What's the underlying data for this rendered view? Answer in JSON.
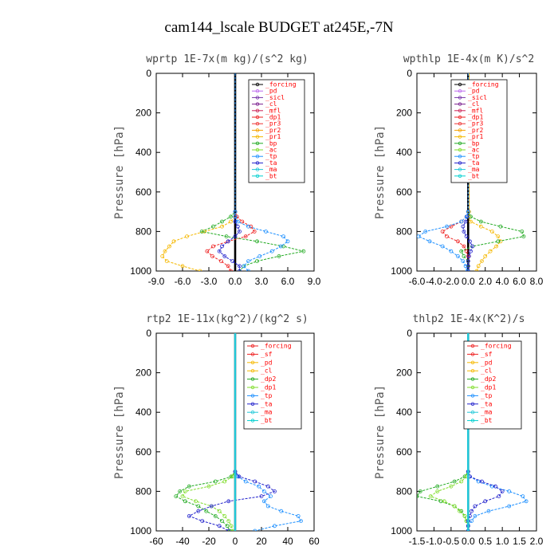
{
  "figure_title": "cam144_lscale  BUDGET at245E,-7N",
  "chart_data": [
    {
      "type": "line",
      "title": "wprtp  1E-7x(m kg)/(s^2 kg)",
      "ylabel": "Pressure [hPa]",
      "xlim": [
        -9,
        9
      ],
      "ylim": [
        1000,
        0
      ],
      "xticks": [
        "-9.0",
        "-6.0",
        "-3.0",
        "0.0",
        "3.0",
        "6.0",
        "9.0"
      ],
      "yticks": [
        "0",
        "200",
        "400",
        "600",
        "800",
        "1000"
      ],
      "y": [
        0,
        200,
        400,
        600,
        700,
        725,
        750,
        775,
        800,
        825,
        850,
        875,
        900,
        925,
        950,
        975,
        1000
      ],
      "legend": [
        "_forcing",
        "_pd",
        "_sicl",
        "_cl",
        "_mfl",
        "_dp1",
        "_pr3",
        "_pr2",
        "_pr1",
        "_bp",
        "_ac",
        "_tp",
        "_ta",
        "_ma",
        "_bt"
      ],
      "series": [
        {
          "name": "_forcing",
          "color": "#000000",
          "values": [
            0,
            0,
            0,
            0,
            0,
            0,
            0,
            0,
            0,
            0,
            0,
            0,
            0,
            0,
            0,
            0,
            0
          ]
        },
        {
          "name": "_dp1",
          "color": "#ee2222",
          "values": [
            0,
            0,
            0,
            0,
            0,
            0.2,
            0.8,
            1.8,
            2.2,
            1.2,
            -0.8,
            -2.5,
            -3.2,
            -2.6,
            -1.6,
            -0.8,
            -0.5
          ]
        },
        {
          "name": "_pr1",
          "color": "#f5b800",
          "values": [
            0,
            0,
            0,
            0,
            0,
            0,
            -0.5,
            -1.5,
            -3.5,
            -5.5,
            -7,
            -7.5,
            -8,
            -8.3,
            -7.8,
            -6,
            -4
          ]
        },
        {
          "name": "_bp",
          "color": "#22aa22",
          "values": [
            0,
            0,
            0,
            0,
            0,
            -0.5,
            -1.5,
            -2.5,
            -3.8,
            -1,
            2.5,
            5.5,
            7.8,
            5,
            2.5,
            1,
            0.5
          ]
        },
        {
          "name": "_ta",
          "color": "#2222cc",
          "values": [
            0,
            0,
            0,
            0,
            0,
            0,
            0,
            0.3,
            0.5,
            0,
            -0.8,
            -1.5,
            -1.8,
            -1.2,
            -0.3,
            0.5,
            0.5
          ]
        },
        {
          "name": "_ma",
          "color": "#1e90ff",
          "values": [
            0,
            0,
            0,
            0,
            0,
            0,
            0.3,
            1.5,
            3.5,
            5.5,
            6,
            5.2,
            4.2,
            2.8,
            1.5,
            1,
            1.5
          ]
        }
      ]
    },
    {
      "type": "line",
      "title": "wpthlp  1E-4x(m K)/s^2",
      "ylabel": "Pressure [hPa]",
      "xlim": [
        -6,
        8
      ],
      "ylim": [
        1000,
        0
      ],
      "xticks": [
        "-6.0",
        "-4.0",
        "-2.0",
        "0.0",
        "2.0",
        "4.0",
        "6.0",
        "8.0"
      ],
      "yticks": [
        "0",
        "200",
        "400",
        "600",
        "800",
        "1000"
      ],
      "y": [
        0,
        200,
        400,
        600,
        700,
        725,
        750,
        775,
        800,
        825,
        850,
        875,
        900,
        925,
        950,
        975,
        1000
      ],
      "legend": [
        "_forcing",
        "_pd",
        "_sicl",
        "_cl",
        "_mfl",
        "_dp1",
        "_pr3",
        "_pr2",
        "_pr1",
        "_bp",
        "_ac",
        "_tp",
        "_ta",
        "_ma",
        "_bt"
      ],
      "series": [
        {
          "name": "_forcing",
          "color": "#000000",
          "values": [
            0,
            0,
            0,
            0,
            0,
            0,
            0,
            0,
            0,
            0,
            0,
            0,
            0,
            0,
            0,
            0,
            0
          ]
        },
        {
          "name": "_dp1",
          "color": "#ee2222",
          "values": [
            0,
            0,
            0,
            0,
            0,
            -0.2,
            -0.8,
            -2,
            -3,
            -2.5,
            -1.2,
            -0.5,
            -0.2,
            0,
            0,
            0,
            0
          ]
        },
        {
          "name": "_pr1",
          "color": "#f5b800",
          "values": [
            0.1,
            0.1,
            0.1,
            0.1,
            0.1,
            0.1,
            0.3,
            1.5,
            2.8,
            3.5,
            3.8,
            3.3,
            2.6,
            2,
            1.6,
            1.2,
            1
          ]
        },
        {
          "name": "_bp",
          "color": "#22aa22",
          "values": [
            0,
            0,
            0,
            0,
            0,
            0.3,
            1.5,
            3.8,
            6.3,
            6.5,
            3.5,
            0.5,
            -0.8,
            -0.5,
            0,
            0,
            0
          ]
        },
        {
          "name": "_ta",
          "color": "#2222cc",
          "values": [
            0,
            0,
            0,
            0,
            0,
            -0.1,
            -0.3,
            -0.6,
            -0.5,
            -0.2,
            0.2,
            0.5,
            0.3,
            0.1,
            0,
            0,
            0
          ]
        },
        {
          "name": "_ma",
          "color": "#1e90ff",
          "values": [
            0,
            0,
            0,
            0,
            0,
            -0.2,
            -0.8,
            -2.5,
            -5,
            -5.8,
            -4.5,
            -3,
            -2,
            -1.2,
            -0.6,
            -0.3,
            -0.1
          ]
        }
      ]
    },
    {
      "type": "line",
      "title": "rtp2  1E-11x(kg^2)/(kg^2 s)",
      "ylabel": "Pressure [hPa]",
      "xlim": [
        -60,
        60
      ],
      "ylim": [
        1000,
        0
      ],
      "xticks": [
        "-60",
        "-40",
        "-20",
        "0",
        "20",
        "40",
        "60"
      ],
      "yticks": [
        "0",
        "200",
        "400",
        "600",
        "800",
        "1000"
      ],
      "y": [
        0,
        200,
        400,
        600,
        700,
        725,
        750,
        775,
        800,
        825,
        850,
        875,
        900,
        925,
        950,
        975,
        1000
      ],
      "legend": [
        "_forcing",
        "_sf",
        "_pd",
        "_cl",
        "_dp2",
        "_dp1",
        "_tp",
        "_ta",
        "_ma",
        "_bt"
      ],
      "series": [
        {
          "name": "_forcing",
          "color": "#ee2222",
          "values": [
            0,
            0,
            0,
            0,
            0,
            0,
            0,
            0,
            0,
            0,
            0,
            0,
            0,
            0,
            0,
            0,
            0
          ]
        },
        {
          "name": "_dp2",
          "color": "#22aa22",
          "values": [
            0,
            0,
            0,
            0,
            0,
            -3,
            -15,
            -35,
            -42,
            -45,
            -38,
            -28,
            -22,
            -15,
            -10,
            -6,
            -4
          ]
        },
        {
          "name": "_dp1",
          "color": "#7fdc2a",
          "values": [
            0,
            0,
            0,
            0,
            0,
            -2,
            -8,
            -20,
            -38,
            -40,
            -30,
            -18,
            -12,
            -8,
            -5,
            -3,
            -2
          ]
        },
        {
          "name": "_tp",
          "color": "#1e90ff",
          "values": [
            0,
            0,
            0,
            0,
            0,
            2,
            8,
            18,
            22,
            27,
            22,
            25,
            35,
            48,
            50,
            30,
            15
          ]
        },
        {
          "name": "_ta",
          "color": "#2222cc",
          "values": [
            0,
            0,
            0,
            0,
            0,
            3,
            15,
            25,
            30,
            20,
            -5,
            -18,
            -28,
            -35,
            -25,
            -12,
            -5
          ]
        },
        {
          "name": "_ma",
          "color": "#20c8d8",
          "values": [
            0,
            0,
            0,
            0,
            0,
            0,
            0,
            0,
            0,
            0,
            0,
            0,
            0,
            0,
            0,
            0,
            0
          ]
        }
      ]
    },
    {
      "type": "line",
      "title": "thlp2  1E-4x(K^2)/s",
      "ylabel": "Pressure [hPa]",
      "xlim": [
        -1.5,
        2.0
      ],
      "ylim": [
        1000,
        0
      ],
      "xticks": [
        "-1.5",
        "-1.0",
        "-0.5",
        "0.0",
        "0.5",
        "1.0",
        "1.5",
        "2.0"
      ],
      "yticks": [
        "0",
        "200",
        "400",
        "600",
        "800",
        "1000"
      ],
      "y": [
        0,
        200,
        400,
        600,
        700,
        725,
        750,
        775,
        800,
        825,
        850,
        875,
        900,
        925,
        950,
        975,
        1000
      ],
      "legend": [
        "_forcing",
        "_sf",
        "_pd",
        "_cl",
        "_dp2",
        "_dp1",
        "_tp",
        "_ta",
        "_ma",
        "_bt"
      ],
      "series": [
        {
          "name": "_forcing",
          "color": "#ee2222",
          "values": [
            0,
            0,
            0,
            0,
            0,
            0,
            0,
            0,
            0,
            0,
            0,
            0,
            0,
            0,
            0,
            0,
            0
          ]
        },
        {
          "name": "_dp2",
          "color": "#22aa22",
          "values": [
            0,
            0,
            0,
            0,
            0,
            -0.1,
            -0.4,
            -0.9,
            -1.4,
            -1.5,
            -0.8,
            -0.4,
            -0.2,
            -0.1,
            -0.05,
            0,
            0
          ]
        },
        {
          "name": "_dp1",
          "color": "#7fdc2a",
          "values": [
            0,
            0,
            0,
            0,
            0,
            -0.05,
            -0.2,
            -0.5,
            -0.9,
            -1.1,
            -0.7,
            -0.4,
            -0.25,
            -0.1,
            -0.05,
            0,
            0
          ]
        },
        {
          "name": "_tp",
          "color": "#1e90ff",
          "values": [
            0,
            0,
            0,
            0,
            0,
            0.05,
            0.3,
            0.7,
            1.2,
            1.6,
            1.7,
            1.2,
            0.6,
            0.2,
            0.1,
            0,
            0
          ]
        },
        {
          "name": "_ta",
          "color": "#2222cc",
          "values": [
            0,
            0,
            0,
            0,
            0,
            0.05,
            0.4,
            0.8,
            1,
            0.9,
            0.5,
            0.2,
            0.1,
            0.05,
            0,
            0,
            0
          ]
        },
        {
          "name": "_ma",
          "color": "#20c8d8",
          "values": [
            0,
            0,
            0,
            0,
            0,
            0,
            0,
            0,
            0,
            0,
            0,
            0,
            0,
            0,
            0,
            0,
            0
          ]
        }
      ]
    }
  ]
}
